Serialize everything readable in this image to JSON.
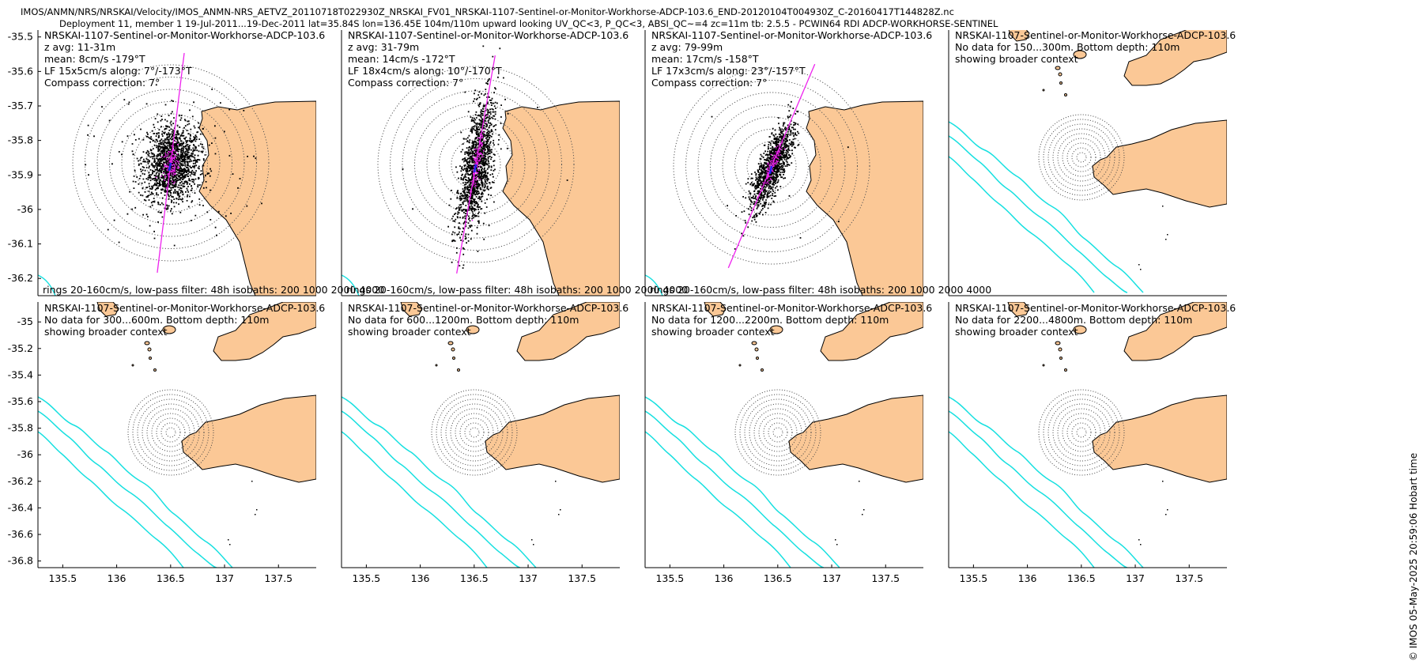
{
  "header": {
    "line1": "IMOS/ANMN/NRS/NRSKAI/Velocity/IMOS_ANMN-NRS_AETVZ_20110718T022930Z_NRSKAI_FV01_NRSKAI-1107-Sentinel-or-Monitor-Workhorse-ADCP-103.6_END-20120104T004930Z_C-20160417T144828Z.nc",
    "line2": "Deployment 11, member 1 19-Jul-2011...19-Dec-2011 lat=35.84S lon=136.45E 104m/110m upward looking UV_QC<3, P_QC<3, ABSI_QC~=4 zc=11m tb: 2.5.5 - PCWIN64 RDI ADCP-WORKHORSE-SENTINEL"
  },
  "copyright": "© IMOS 05-May-2025 20:59:06 Hobart time",
  "colors": {
    "land": "#fbc896",
    "isobath": "#16e0e0",
    "major_axis": "#ee22ee",
    "mean_vector": "#2222ee",
    "scatter": "#000000"
  },
  "chart_data": [
    {
      "type": "scatter",
      "panel": "row1-col1",
      "title": "NRSKAI-1107-Sentinel-or-Monitor-Workhorse-ADCP-103.6",
      "lines": [
        "z avg: 11-31m",
        "mean: 8cm/s -179°T",
        "LF 15x5cm/s along: 7°/-173°T",
        "Compass correction: 7°"
      ],
      "footer": "rings 20-160cm/s, low-pass filter: 48h isobaths: 200 1000 2000 4000",
      "ylabel_ticks": [
        "-35.5",
        "-35.6",
        "-35.7",
        "-35.8",
        "-35.9",
        "-36",
        "-36.1",
        "-36.2"
      ],
      "ylim": [
        -36.25,
        -35.48
      ],
      "xlim": [
        135.27,
        137.85
      ],
      "ring_values_cms": [
        20,
        40,
        60,
        80,
        100,
        120,
        140,
        160
      ],
      "lf_major_cms": 15,
      "lf_minor_cms": 5,
      "along_deg": 7,
      "mean_speed_cms": 8,
      "mean_dir_degT": -179
    },
    {
      "type": "scatter",
      "panel": "row1-col2",
      "title": "NRSKAI-1107-Sentinel-or-Monitor-Workhorse-ADCP-103.6",
      "lines": [
        "z avg: 31-79m",
        "mean: 14cm/s -172°T",
        "LF 18x4cm/s along: 10°/-170°T",
        "Compass correction: 7°"
      ],
      "footer": "rings 20-160cm/s, low-pass filter: 48h isobaths: 200 1000 2000 4000",
      "xlim": [
        135.27,
        137.85
      ],
      "ring_values_cms": [
        20,
        40,
        60,
        80,
        100,
        120,
        140,
        160
      ],
      "lf_major_cms": 18,
      "lf_minor_cms": 4,
      "along_deg": 10,
      "mean_speed_cms": 14,
      "mean_dir_degT": -172
    },
    {
      "type": "scatter",
      "panel": "row1-col3",
      "title": "NRSKAI-1107-Sentinel-or-Monitor-Workhorse-ADCP-103.6",
      "lines": [
        "z avg: 79-99m",
        "mean: 17cm/s -158°T",
        "LF 17x3cm/s along: 23°/-157°T",
        "Compass correction: 7°"
      ],
      "footer": "rings 20-160cm/s, low-pass filter: 48h isobaths: 200 1000 2000 4000",
      "xlim": [
        135.27,
        137.85
      ],
      "ring_values_cms": [
        20,
        40,
        60,
        80,
        100,
        120,
        140,
        160
      ],
      "lf_major_cms": 17,
      "lf_minor_cms": 3,
      "along_deg": 23,
      "mean_speed_cms": 17,
      "mean_dir_degT": -158
    },
    {
      "type": "scatter",
      "panel": "row1-col4",
      "title": "NRSKAI-1107-Sentinel-or-Monitor-Workhorse-ADCP-103.6",
      "lines": [
        "No data for 150...300m. Bottom depth: 110m",
        "showing broader context"
      ],
      "xlim": [
        135.27,
        137.85
      ]
    },
    {
      "type": "scatter",
      "panel": "row2-col1",
      "title": "NRSKAI-1107-Sentinel-or-Monitor-Workhorse-ADCP-103.6",
      "lines": [
        "No data for 300...600m. Bottom depth: 110m",
        "showing broader context"
      ],
      "ylabel_ticks": [
        "-35",
        "-35.2",
        "-35.4",
        "-35.6",
        "-35.8",
        "-36",
        "-36.2",
        "-36.4",
        "-36.6",
        "-36.8"
      ],
      "ylim": [
        -36.85,
        -34.85
      ],
      "xlabel_ticks": [
        "135.5",
        "136",
        "136.5",
        "137",
        "137.5"
      ],
      "xlim": [
        135.27,
        137.85
      ]
    },
    {
      "type": "scatter",
      "panel": "row2-col2",
      "title": "NRSKAI-1107-Sentinel-or-Monitor-Workhorse-ADCP-103.6",
      "lines": [
        "No data for 600...1200m. Bottom depth: 110m",
        "showing broader context"
      ],
      "xlabel_ticks": [
        "135.5",
        "136",
        "136.5",
        "137",
        "137.5"
      ],
      "xlim": [
        135.27,
        137.85
      ]
    },
    {
      "type": "scatter",
      "panel": "row2-col3",
      "title": "NRSKAI-1107-Sentinel-or-Monitor-Workhorse-ADCP-103.6",
      "lines": [
        "No data for 1200...2200m. Bottom depth: 110m",
        "showing broader context"
      ],
      "xlabel_ticks": [
        "135.5",
        "136",
        "136.5",
        "137",
        "137.5"
      ],
      "xlim": [
        135.27,
        137.85
      ]
    },
    {
      "type": "scatter",
      "panel": "row2-col4",
      "title": "NRSKAI-1107-Sentinel-or-Monitor-Workhorse-ADCP-103.6",
      "lines": [
        "No data for 2200...4800m. Bottom depth: 110m",
        "showing broader context"
      ],
      "xlabel_ticks": [
        "135.5",
        "136",
        "136.5",
        "137",
        "137.5"
      ],
      "xlim": [
        135.27,
        137.85
      ]
    }
  ]
}
